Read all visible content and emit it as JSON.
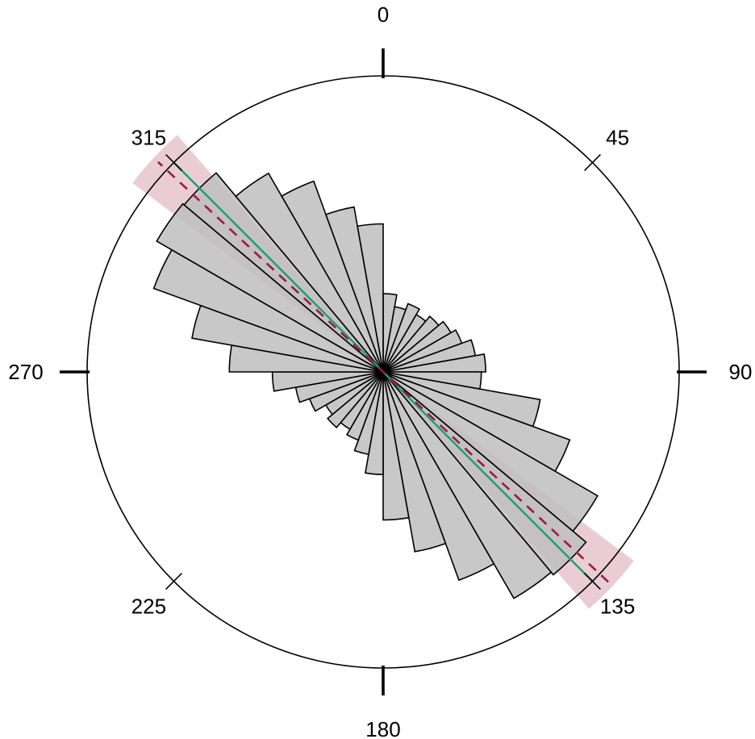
{
  "chart_data": {
    "type": "rose",
    "angle_unit": "degrees",
    "direction": "clockwise from north",
    "bin_width": 10,
    "tick_labels": [
      "0",
      "45",
      "90",
      "135",
      "180",
      "225",
      "270",
      "315"
    ],
    "tick_angles": [
      0,
      45,
      90,
      135,
      180,
      225,
      270,
      315
    ],
    "bins": [
      {
        "center": 5,
        "value": 0.07
      },
      {
        "center": 15,
        "value": 0.05
      },
      {
        "center": 25,
        "value": 0.06
      },
      {
        "center": 35,
        "value": 0.05
      },
      {
        "center": 45,
        "value": 0.06
      },
      {
        "center": 55,
        "value": 0.07
      },
      {
        "center": 65,
        "value": 0.08
      },
      {
        "center": 75,
        "value": 0.1
      },
      {
        "center": 85,
        "value": 0.12
      },
      {
        "center": 95,
        "value": 0.11
      },
      {
        "center": 105,
        "value": 0.29
      },
      {
        "center": 115,
        "value": 0.45
      },
      {
        "center": 125,
        "value": 0.7
      },
      {
        "center": 135,
        "value": 0.8
      },
      {
        "center": 145,
        "value": 0.78
      },
      {
        "center": 155,
        "value": 0.56
      },
      {
        "center": 165,
        "value": 0.38
      },
      {
        "center": 175,
        "value": 0.25
      },
      {
        "center": 185,
        "value": 0.12
      },
      {
        "center": 195,
        "value": 0.08
      },
      {
        "center": 205,
        "value": 0.06
      },
      {
        "center": 215,
        "value": 0.05
      },
      {
        "center": 225,
        "value": 0.06
      },
      {
        "center": 235,
        "value": 0.05
      },
      {
        "center": 245,
        "value": 0.07
      },
      {
        "center": 255,
        "value": 0.09
      },
      {
        "center": 265,
        "value": 0.14
      },
      {
        "center": 275,
        "value": 0.27
      },
      {
        "center": 285,
        "value": 0.43
      },
      {
        "center": 295,
        "value": 0.68
      },
      {
        "center": 305,
        "value": 0.78
      },
      {
        "center": 315,
        "value": 0.77
      },
      {
        "center": 325,
        "value": 0.6
      },
      {
        "center": 335,
        "value": 0.47
      },
      {
        "center": 345,
        "value": 0.32
      },
      {
        "center": 355,
        "value": 0.25
      }
    ],
    "r_max": 1.0,
    "mean_direction": 133,
    "confidence_interval": [
      127,
      139
    ],
    "reference_direction": 135,
    "colors": {
      "petal_fill": "#bebebe",
      "petal_stroke": "#000000",
      "confidence_band": "#d9a3b0",
      "mean_line": "#9b1b40",
      "reference_line": "#1b9e77"
    }
  }
}
